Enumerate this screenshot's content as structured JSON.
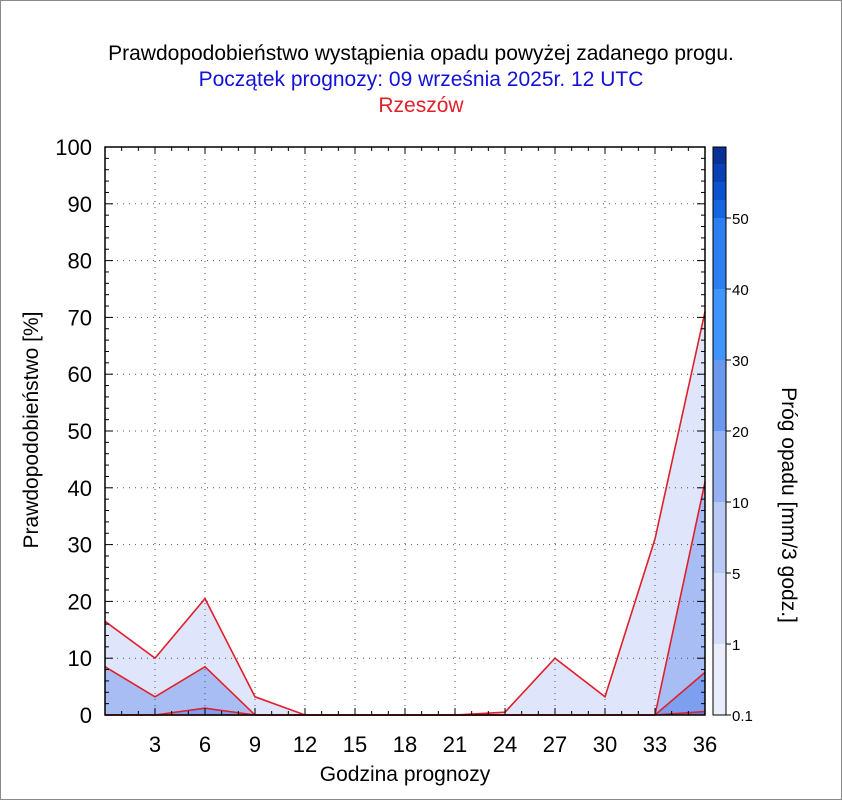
{
  "chart_data": {
    "type": "area",
    "title": "Prawdopodobieństwo wystąpienia opadu powyżej zadanego progu.",
    "subtitle": "Początek prognozy: 09 września 2025r. 12 UTC",
    "location": "Rzeszów",
    "xlabel": "Godzina prognozy",
    "ylabel": "Prawdopodobieństwo [%]",
    "xlim": [
      0,
      36
    ],
    "ylim": [
      0,
      100
    ],
    "x_ticks": [
      "3",
      "6",
      "9",
      "12",
      "15",
      "18",
      "21",
      "24",
      "27",
      "30",
      "33",
      "36"
    ],
    "y_ticks": [
      "0",
      "10",
      "20",
      "30",
      "40",
      "50",
      "60",
      "70",
      "80",
      "90",
      "100"
    ],
    "x": [
      0,
      3,
      6,
      9,
      12,
      15,
      18,
      21,
      24,
      27,
      30,
      33,
      36
    ],
    "series": [
      {
        "threshold": 0.1,
        "color": "#dfe5fb",
        "values": [
          16.5,
          10,
          20.5,
          3.2,
          0,
          0,
          0,
          0,
          0.5,
          10,
          3.2,
          31,
          71
        ]
      },
      {
        "threshold": 1,
        "color": "#a9bdf5",
        "values": [
          8.5,
          3.2,
          8.5,
          0,
          0,
          0,
          0,
          0,
          0,
          0,
          0,
          0,
          41
        ]
      },
      {
        "threshold": 5,
        "color": "#7d9fef",
        "values": [
          0,
          0,
          1.2,
          0,
          0,
          0,
          0,
          0,
          0,
          0,
          0,
          0,
          7.5
        ]
      },
      {
        "threshold": 10,
        "color": "#5c84ea",
        "values": [
          0,
          0,
          0,
          0,
          0,
          0,
          0,
          0,
          0,
          0,
          0,
          0,
          0.6
        ]
      }
    ],
    "colorbar": {
      "label": "Próg opadu [mm/3 godz.]",
      "ticks": [
        "0.1",
        "1",
        "5",
        "10",
        "20",
        "30",
        "40",
        "50"
      ],
      "colors": [
        "#eaeefc",
        "#d3ddf9",
        "#b8c9f6",
        "#95b1f2",
        "#6b98ef",
        "#3f95ff",
        "#2b7ff0",
        "#1666e2",
        "#0b52cf",
        "#0a3fb5",
        "#0a3296"
      ]
    }
  }
}
